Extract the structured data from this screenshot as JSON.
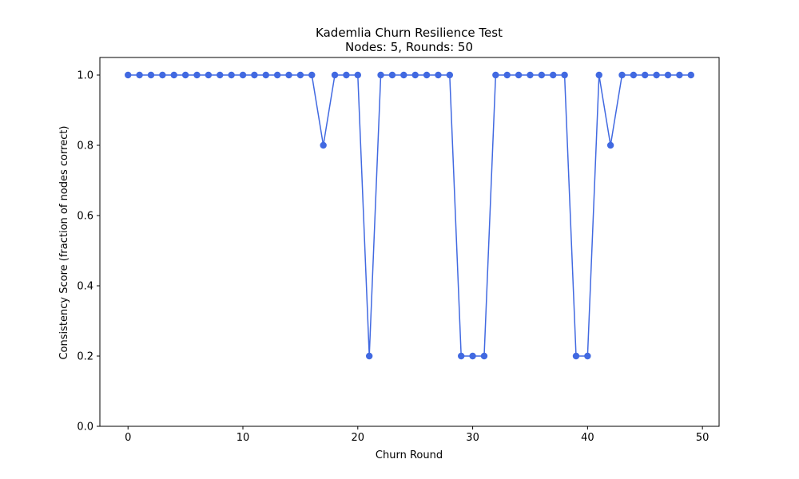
{
  "chart_data": {
    "type": "line",
    "title": "Kademlia Churn Resilience Test",
    "subtitle": "Nodes: 5, Rounds: 50",
    "xlabel": "Churn Round",
    "ylabel": "Consistency Score (fraction of nodes correct)",
    "xlim": [
      -2.45,
      51.45
    ],
    "ylim": [
      0.0,
      1.05
    ],
    "xticks": [
      0,
      10,
      20,
      30,
      40,
      50
    ],
    "yticks": [
      0.0,
      0.2,
      0.4,
      0.6,
      0.8,
      1.0
    ],
    "grid": false,
    "series": [
      {
        "color": "#4169e1",
        "marker": "circle",
        "x": [
          0,
          1,
          2,
          3,
          4,
          5,
          6,
          7,
          8,
          9,
          10,
          11,
          12,
          13,
          14,
          15,
          16,
          17,
          18,
          19,
          20,
          21,
          22,
          23,
          24,
          25,
          26,
          27,
          28,
          29,
          30,
          31,
          32,
          33,
          34,
          35,
          36,
          37,
          38,
          39,
          40,
          41,
          42,
          43,
          44,
          45,
          46,
          47,
          48,
          49
        ],
        "values": [
          1.0,
          1.0,
          1.0,
          1.0,
          1.0,
          1.0,
          1.0,
          1.0,
          1.0,
          1.0,
          1.0,
          1.0,
          1.0,
          1.0,
          1.0,
          1.0,
          1.0,
          0.8,
          1.0,
          1.0,
          1.0,
          0.2,
          1.0,
          1.0,
          1.0,
          1.0,
          1.0,
          1.0,
          1.0,
          0.2,
          0.2,
          0.2,
          1.0,
          1.0,
          1.0,
          1.0,
          1.0,
          1.0,
          1.0,
          0.2,
          0.2,
          1.0,
          0.8,
          1.0,
          1.0,
          1.0,
          1.0,
          1.0,
          1.0,
          1.0
        ]
      }
    ]
  }
}
